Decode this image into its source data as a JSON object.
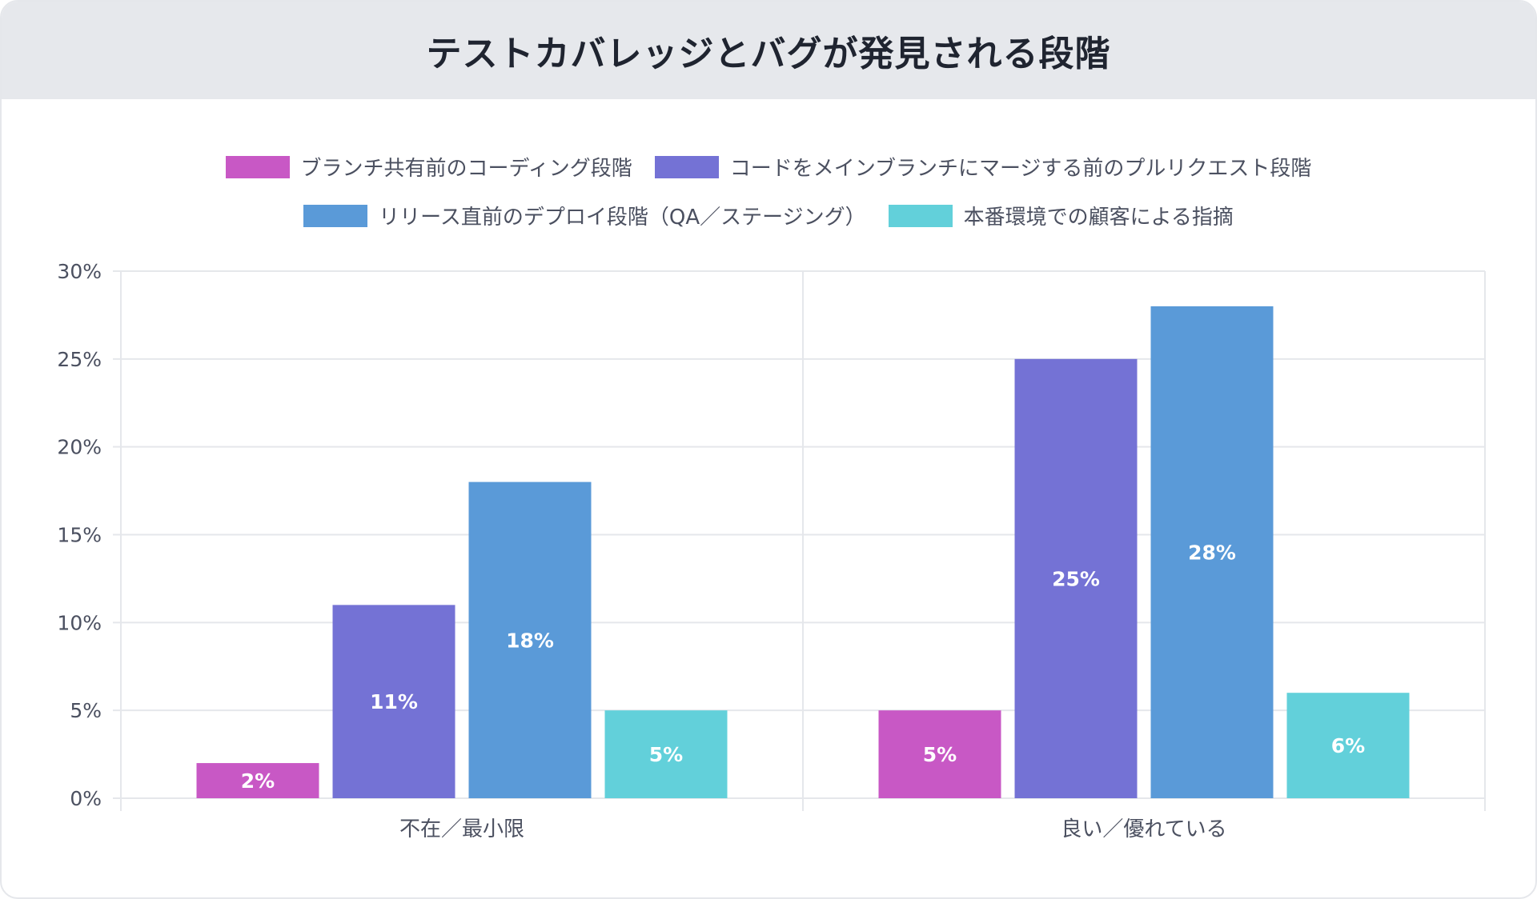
{
  "chart_data": {
    "type": "bar",
    "title": "テストカバレッジとバグが発見される段階",
    "categories": [
      "不在／最小限",
      "良い／優れている"
    ],
    "series": [
      {
        "name": "ブランチ共有前のコーディング段階",
        "color": "#c858c5",
        "values": [
          2,
          5
        ]
      },
      {
        "name": "コードをメインブランチにマージする前のプルリクエスト段階",
        "color": "#7472d5",
        "values": [
          11,
          25
        ]
      },
      {
        "name": "リリース直前のデプロイ段階（QA／ステージング）",
        "color": "#5a9ad8",
        "values": [
          18,
          28
        ]
      },
      {
        "name": "本番環境での顧客による指摘",
        "color": "#62d0da",
        "values": [
          5,
          6
        ]
      }
    ],
    "data_labels": [
      [
        "2%",
        "5%"
      ],
      [
        "11%",
        "25%"
      ],
      [
        "18%",
        "28%"
      ],
      [
        "5%",
        "6%"
      ]
    ],
    "ylim": [
      0,
      30
    ],
    "yticks": [
      "0%",
      "5%",
      "10%",
      "15%",
      "20%",
      "25%",
      "30%"
    ],
    "ytick_values": [
      0,
      5,
      10,
      15,
      20,
      25,
      30
    ],
    "xlabel": "",
    "ylabel": "",
    "grid": true,
    "legend": "top"
  }
}
